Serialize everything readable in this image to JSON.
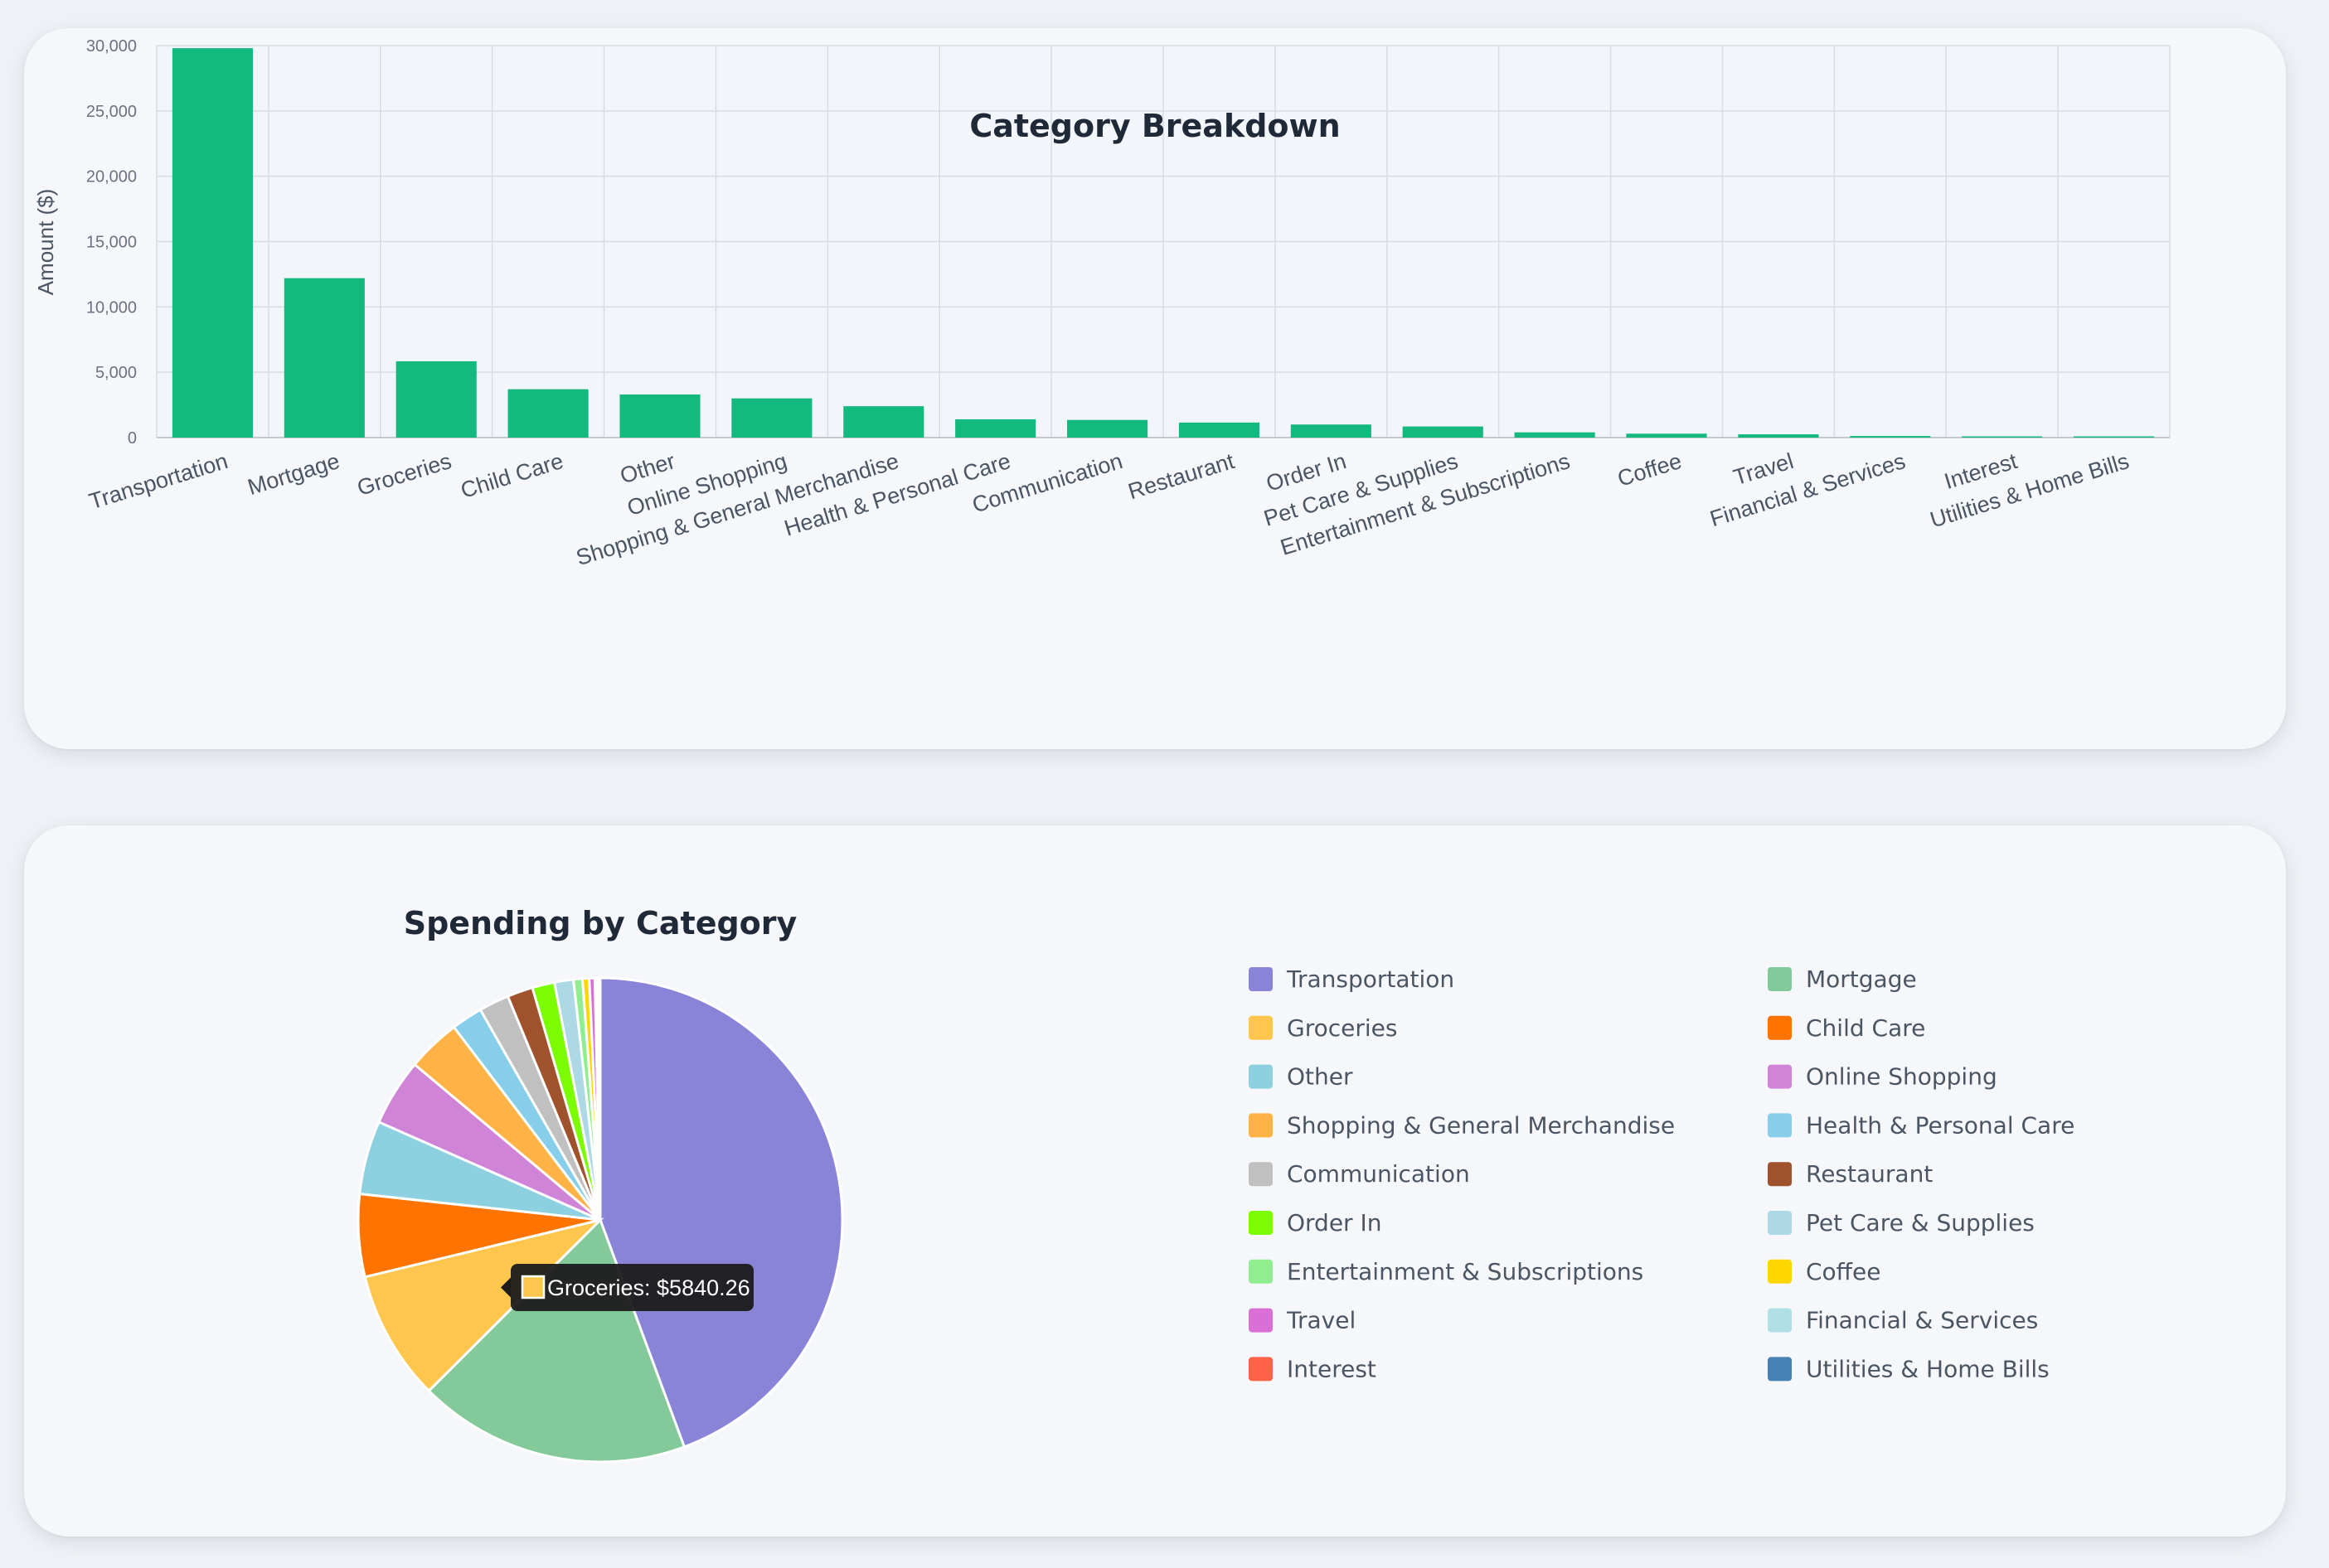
{
  "bar_chart_data": {
    "type": "bar",
    "title": "Category Breakdown",
    "ylabel": "Amount ($)",
    "xlabel": "",
    "ylim": [
      0,
      30000
    ],
    "yticks": [
      "0",
      "5,000",
      "10,000",
      "15,000",
      "20,000",
      "25,000",
      "30,000"
    ],
    "bar_color": "#13b97e",
    "grid": true,
    "categories": [
      "Transportation",
      "Mortgage",
      "Groceries",
      "Child Care",
      "Other",
      "Online Shopping",
      "Shopping & General Merchandise",
      "Health & Personal Care",
      "Communication",
      "Restaurant",
      "Order In",
      "Pet Care & Supplies",
      "Entertainment & Subscriptions",
      "Coffee",
      "Travel",
      "Financial & Services",
      "Interest",
      "Utilities & Home Bills"
    ],
    "values": [
      29800,
      12200,
      5840.26,
      3700,
      3300,
      3000,
      2400,
      1400,
      1350,
      1150,
      1000,
      850,
      400,
      300,
      250,
      120,
      80,
      40
    ]
  },
  "chart_data": {
    "type": "pie",
    "title": "Spending by Category",
    "legend_position": "right",
    "categories": [
      "Transportation",
      "Mortgage",
      "Groceries",
      "Child Care",
      "Other",
      "Online Shopping",
      "Shopping & General Merchandise",
      "Health & Personal Care",
      "Communication",
      "Restaurant",
      "Order In",
      "Pet Care & Supplies",
      "Entertainment & Subscriptions",
      "Coffee",
      "Travel",
      "Financial & Services",
      "Interest",
      "Utilities & Home Bills"
    ],
    "values": [
      29800,
      12200,
      5840.26,
      3700,
      3300,
      3000,
      2400,
      1400,
      1350,
      1150,
      1000,
      850,
      400,
      300,
      250,
      120,
      80,
      40
    ],
    "colors": [
      "#8a84d8",
      "#84c99a",
      "#ffc64d",
      "#ff7300",
      "#8dd1e1",
      "#d084d8",
      "#ffb347",
      "#87ceeb",
      "#c0c0c0",
      "#a0522d",
      "#7cfc00",
      "#add8e6",
      "#90ee90",
      "#ffd700",
      "#da70d6",
      "#b0e0e6",
      "#ff6347",
      "#4682b4"
    ],
    "tooltip": {
      "category": "Groceries",
      "text": "Groceries: $5840.26",
      "color": "#ffc64d"
    }
  }
}
